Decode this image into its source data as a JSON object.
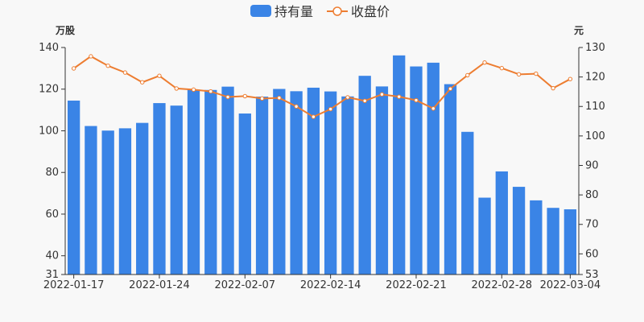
{
  "chart_data": {
    "type": "bar+line",
    "legend": {
      "placement": "top-center",
      "items": [
        {
          "name": "持有量",
          "kind": "bar",
          "color": "#3a84e6"
        },
        {
          "name": "收盘价",
          "kind": "line",
          "color": "#ed7d31"
        }
      ]
    },
    "categories": [
      "2022-01-17",
      "2022-01-18",
      "2022-01-19",
      "2022-01-20",
      "2022-01-21",
      "2022-01-24",
      "2022-01-25",
      "2022-01-26",
      "2022-01-27",
      "2022-01-28",
      "2022-02-07",
      "2022-02-08",
      "2022-02-09",
      "2022-02-10",
      "2022-02-11",
      "2022-02-14",
      "2022-02-15",
      "2022-02-16",
      "2022-02-17",
      "2022-02-18",
      "2022-02-21",
      "2022-02-22",
      "2022-02-23",
      "2022-02-24",
      "2022-02-25",
      "2022-02-28",
      "2022-03-01",
      "2022-03-02",
      "2022-03-03",
      "2022-03-04"
    ],
    "x_tick_labels": [
      "2022-01-17",
      "2022-01-24",
      "2022-02-07",
      "2022-02-14",
      "2022-02-21",
      "2022-02-28",
      "2022-03-04"
    ],
    "x_tick_indices": [
      0,
      5,
      10,
      15,
      20,
      25,
      29
    ],
    "y_left": {
      "unit": "万股",
      "min": 31,
      "max": 140,
      "ticks": [
        31,
        40,
        60,
        80,
        100,
        120,
        140
      ]
    },
    "y_right": {
      "unit": "元",
      "min": 53,
      "max": 130,
      "ticks": [
        53,
        60,
        70,
        80,
        90,
        100,
        110,
        120,
        130
      ]
    },
    "series": [
      {
        "name": "持有量",
        "axis": "left",
        "type": "bar",
        "color": "#3a84e6",
        "values": [
          114.5,
          102.3,
          100.1,
          101.2,
          103.8,
          113.3,
          112.1,
          119.8,
          119.6,
          121.2,
          108.3,
          116.4,
          120.1,
          119.0,
          120.7,
          118.9,
          116.5,
          126.4,
          121.3,
          136.2,
          130.9,
          132.7,
          122.4,
          99.5,
          67.9,
          80.5,
          73.1,
          66.6,
          63.0,
          62.3
        ]
      },
      {
        "name": "收盘价",
        "axis": "right",
        "type": "line",
        "color": "#ed7d31",
        "values": [
          122.9,
          127.0,
          123.8,
          121.5,
          118.2,
          120.4,
          116.1,
          115.7,
          115.1,
          113.2,
          113.5,
          112.7,
          112.9,
          110.0,
          106.5,
          109.1,
          113.1,
          111.9,
          114.1,
          113.3,
          112.1,
          109.3,
          116.0,
          120.6,
          124.9,
          123.0,
          120.9,
          121.1,
          116.2,
          119.3
        ]
      }
    ]
  }
}
